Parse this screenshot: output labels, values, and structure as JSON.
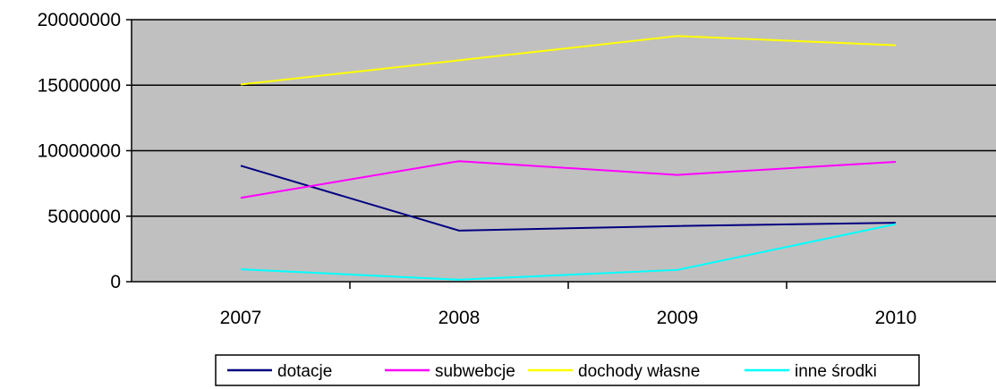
{
  "chart_data": {
    "type": "line",
    "title": "",
    "xlabel": "",
    "ylabel": "",
    "categories": [
      "2007",
      "2008",
      "2009",
      "2010"
    ],
    "ylim": [
      0,
      20000000
    ],
    "yticks": [
      0,
      5000000,
      10000000,
      15000000,
      20000000
    ],
    "ytick_labels": [
      "0",
      "5000000",
      "10000000",
      "15000000",
      "20000000"
    ],
    "grid": "horizontal",
    "plot_background": "#c0c0c0",
    "legend_position": "bottom",
    "series": [
      {
        "name": "dotacje",
        "color": "#000080",
        "values": [
          8850000,
          3900000,
          4250000,
          4500000
        ]
      },
      {
        "name": "subwebcje",
        "color": "#ff00ff",
        "values": [
          6400000,
          9200000,
          8150000,
          9150000
        ]
      },
      {
        "name": "dochody własne",
        "color": "#ffff00",
        "values": [
          15050000,
          16900000,
          18750000,
          18050000
        ]
      },
      {
        "name": "inne środki",
        "color": "#00ffff",
        "values": [
          950000,
          150000,
          900000,
          4400000
        ]
      }
    ]
  }
}
